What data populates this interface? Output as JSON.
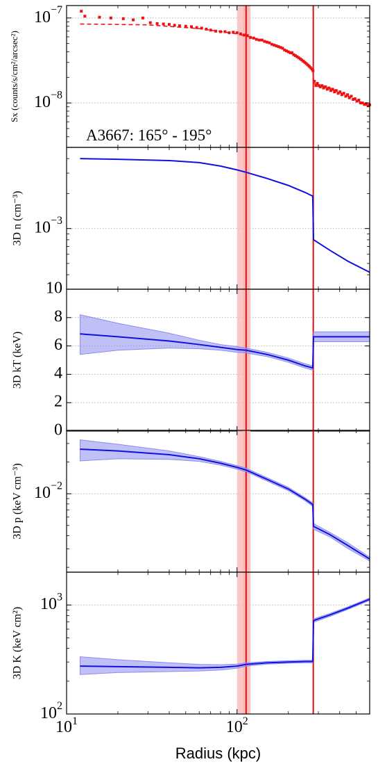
{
  "colors": {
    "profile": "#1010e0",
    "band": "#8c8cf0",
    "data": "#ee1111",
    "shade": "#f7b5b5",
    "line": "#e01010",
    "grid": "#b0b0b0"
  },
  "chart_data": {
    "type": "line",
    "x_scale": "log",
    "xlim": [
      10,
      600
    ],
    "xlabel": "Radius (kpc)",
    "x_ticks": [
      {
        "value": 10,
        "base": "10",
        "exp": "1"
      },
      {
        "value": 100,
        "base": "10",
        "exp": "2"
      }
    ],
    "vertical_lines": [
      113,
      280
    ],
    "shaded_regions": [
      [
        100,
        120
      ],
      [
        108,
        118
      ]
    ],
    "panels": [
      {
        "id": "sx",
        "ylabel": "Sx (counts/s/cm²/arcsec²)",
        "y_scale": "log",
        "ylim": [
          3e-09,
          1.4e-07
        ],
        "y_ticks": [
          {
            "value": 1e-07,
            "base": "10",
            "exp": "−7"
          },
          {
            "value": 1e-08,
            "base": "10",
            "exp": "−8"
          }
        ],
        "annotation": "A3667: 165° - 195°",
        "model": {
          "style": "dashed",
          "points": [
            [
              12,
              8.5e-08
            ],
            [
              30,
              8.3e-08
            ],
            [
              60,
              7.5e-08
            ],
            [
              100,
              6.5e-08
            ],
            [
              140,
              5.5e-08
            ],
            [
              180,
              4.5e-08
            ],
            [
              220,
              3.6e-08
            ],
            [
              260,
              2.9e-08
            ],
            [
              278,
              2.5e-08
            ],
            [
              282,
              1.7e-08
            ],
            [
              350,
              1.5e-08
            ],
            [
              450,
              1.2e-08
            ],
            [
              600,
              9e-09
            ]
          ]
        },
        "data_points": [
          [
            12.2,
            1.2e-07
          ],
          [
            12.8,
            1.05e-07
          ],
          [
            15.6,
            1.02e-07
          ],
          [
            18.2,
            1e-07
          ],
          [
            21.5,
            9.8e-08
          ],
          [
            24.6,
            9.5e-08
          ],
          [
            28,
            1e-07
          ],
          [
            31,
            8.8e-08
          ],
          [
            34,
            8.6e-08
          ],
          [
            37,
            8.5e-08
          ],
          [
            40,
            8.4e-08
          ],
          [
            43,
            8.2e-08
          ],
          [
            46,
            8.1e-08
          ],
          [
            50,
            8e-08
          ],
          [
            54,
            7.9e-08
          ],
          [
            58,
            7.7e-08
          ],
          [
            62,
            7.6e-08
          ],
          [
            66,
            7.4e-08
          ],
          [
            70,
            7.2e-08
          ],
          [
            75,
            7e-08
          ],
          [
            80,
            6.9e-08
          ],
          [
            85,
            6.9e-08
          ],
          [
            90,
            6.7e-08
          ],
          [
            95,
            6.8e-08
          ],
          [
            100,
            6.7e-08
          ],
          [
            105,
            6.5e-08
          ],
          [
            110,
            6.3e-08
          ],
          [
            115,
            6.2e-08
          ],
          [
            120,
            5.9e-08
          ],
          [
            125,
            5.8e-08
          ],
          [
            130,
            5.6e-08
          ],
          [
            135,
            5.5e-08
          ],
          [
            140,
            5.5e-08
          ],
          [
            145,
            5.3e-08
          ],
          [
            150,
            5.2e-08
          ],
          [
            155,
            5.1e-08
          ],
          [
            160,
            4.9e-08
          ],
          [
            165,
            4.8e-08
          ],
          [
            170,
            4.7e-08
          ],
          [
            175,
            4.6e-08
          ],
          [
            180,
            4.5e-08
          ],
          [
            185,
            4.4e-08
          ],
          [
            190,
            4.2e-08
          ],
          [
            195,
            4.1e-08
          ],
          [
            200,
            4e-08
          ],
          [
            205,
            3.9e-08
          ],
          [
            210,
            3.9e-08
          ],
          [
            215,
            3.7e-08
          ],
          [
            220,
            3.6e-08
          ],
          [
            225,
            3.5e-08
          ],
          [
            230,
            3.4e-08
          ],
          [
            235,
            3.3e-08
          ],
          [
            240,
            3.2e-08
          ],
          [
            245,
            3.1e-08
          ],
          [
            250,
            3e-08
          ],
          [
            255,
            2.9e-08
          ],
          [
            260,
            2.8e-08
          ],
          [
            265,
            2.7e-08
          ],
          [
            270,
            2.6e-08
          ],
          [
            275,
            2.5e-08
          ],
          [
            279,
            2.4e-08
          ],
          [
            284,
            1.8e-08
          ],
          [
            290,
            1.6e-08
          ],
          [
            296,
            1.7e-08
          ],
          [
            302,
            1.6e-08
          ],
          [
            308,
            1.55e-08
          ],
          [
            315,
            1.6e-08
          ],
          [
            322,
            1.5e-08
          ],
          [
            330,
            1.55e-08
          ],
          [
            338,
            1.45e-08
          ],
          [
            346,
            1.5e-08
          ],
          [
            355,
            1.4e-08
          ],
          [
            364,
            1.45e-08
          ],
          [
            373,
            1.35e-08
          ],
          [
            382,
            1.4e-08
          ],
          [
            392,
            1.3e-08
          ],
          [
            402,
            1.35e-08
          ],
          [
            412,
            1.25e-08
          ],
          [
            423,
            1.3e-08
          ],
          [
            434,
            1.2e-08
          ],
          [
            445,
            1.25e-08
          ],
          [
            456,
            1.15e-08
          ],
          [
            468,
            1.2e-08
          ],
          [
            480,
            1.1e-08
          ],
          [
            492,
            1.12e-08
          ],
          [
            505,
            1.05e-08
          ],
          [
            518,
            1.08e-08
          ],
          [
            531,
            1e-08
          ],
          [
            545,
            1e-08
          ],
          [
            559,
            9.6e-09
          ],
          [
            573,
            9.8e-09
          ],
          [
            588,
            9.3e-09
          ],
          [
            600,
            9.5e-09
          ]
        ]
      },
      {
        "id": "n",
        "ylabel": "3D n (cm⁻³)",
        "y_scale": "log",
        "ylim": [
          0.0003,
          0.005
        ],
        "y_ticks": [
          {
            "value": 0.001,
            "base": "10",
            "exp": "−3"
          }
        ],
        "model": {
          "style": "solid",
          "points": [
            [
              12,
              0.004
            ],
            [
              20,
              0.00395
            ],
            [
              40,
              0.00385
            ],
            [
              60,
              0.0037
            ],
            [
              80,
              0.00345
            ],
            [
              100,
              0.0032
            ],
            [
              113,
              0.00305
            ],
            [
              150,
              0.0027
            ],
            [
              200,
              0.00235
            ],
            [
              250,
              0.00205
            ],
            [
              278,
              0.0019
            ],
            [
              281,
              0.0008
            ],
            [
              350,
              0.00065
            ],
            [
              450,
              0.00052
            ],
            [
              600,
              0.00042
            ]
          ]
        }
      },
      {
        "id": "kt",
        "ylabel": "3D kT (keV)",
        "y_scale": "linear",
        "ylim": [
          0,
          10
        ],
        "y_ticks": [
          {
            "value": 0,
            "label": "0"
          },
          {
            "value": 2,
            "label": "2"
          },
          {
            "value": 4,
            "label": "4"
          },
          {
            "value": 6,
            "label": "6"
          },
          {
            "value": 8,
            "label": "8"
          },
          {
            "value": 10,
            "label": "10"
          }
        ],
        "model": {
          "style": "solid",
          "points": [
            [
              12,
              6.85
            ],
            [
              20,
              6.65
            ],
            [
              40,
              6.35
            ],
            [
              60,
              6.1
            ],
            [
              80,
              5.9
            ],
            [
              100,
              5.75
            ],
            [
              113,
              5.7
            ],
            [
              150,
              5.4
            ],
            [
              200,
              5.0
            ],
            [
              250,
              4.6
            ],
            [
              278,
              4.45
            ],
            [
              281,
              6.65
            ],
            [
              600,
              6.65
            ]
          ]
        },
        "band": {
          "upper": [
            [
              12,
              8.2
            ],
            [
              20,
              7.6
            ],
            [
              40,
              6.9
            ],
            [
              60,
              6.4
            ],
            [
              80,
              6.1
            ],
            [
              100,
              5.95
            ],
            [
              113,
              5.85
            ],
            [
              150,
              5.55
            ],
            [
              200,
              5.15
            ],
            [
              250,
              4.75
            ],
            [
              278,
              4.6
            ],
            [
              281,
              7.0
            ],
            [
              600,
              7.0
            ]
          ],
          "lower": [
            [
              12,
              5.4
            ],
            [
              20,
              5.7
            ],
            [
              40,
              5.85
            ],
            [
              60,
              5.8
            ],
            [
              80,
              5.7
            ],
            [
              100,
              5.55
            ],
            [
              113,
              5.5
            ],
            [
              150,
              5.25
            ],
            [
              200,
              4.85
            ],
            [
              250,
              4.45
            ],
            [
              278,
              4.3
            ],
            [
              281,
              6.3
            ],
            [
              600,
              6.3
            ]
          ]
        }
      },
      {
        "id": "p",
        "ylabel": "3D p (keV cm⁻³)",
        "y_scale": "log",
        "ylim": [
          0.0018,
          0.04
        ],
        "y_ticks": [
          {
            "value": 0.01,
            "base": "10",
            "exp": "−2"
          }
        ],
        "model": {
          "style": "solid",
          "points": [
            [
              12,
              0.0265
            ],
            [
              20,
              0.0255
            ],
            [
              40,
              0.0235
            ],
            [
              60,
              0.0215
            ],
            [
              80,
              0.0195
            ],
            [
              100,
              0.0178
            ],
            [
              113,
              0.0168
            ],
            [
              150,
              0.0137
            ],
            [
              200,
              0.0111
            ],
            [
              250,
              0.0089
            ],
            [
              278,
              0.0079
            ],
            [
              281,
              0.0049
            ],
            [
              350,
              0.0041
            ],
            [
              450,
              0.0032
            ],
            [
              600,
              0.0024
            ]
          ]
        },
        "band": {
          "upper": [
            [
              12,
              0.0325
            ],
            [
              20,
              0.0295
            ],
            [
              40,
              0.0255
            ],
            [
              60,
              0.0225
            ],
            [
              80,
              0.0203
            ],
            [
              100,
              0.0185
            ],
            [
              113,
              0.0175
            ],
            [
              150,
              0.0142
            ],
            [
              200,
              0.0115
            ],
            [
              250,
              0.0092
            ],
            [
              278,
              0.0082
            ],
            [
              281,
              0.0052
            ],
            [
              350,
              0.0043
            ],
            [
              450,
              0.0034
            ],
            [
              600,
              0.0025
            ]
          ],
          "lower": [
            [
              12,
              0.0205
            ],
            [
              20,
              0.0215
            ],
            [
              40,
              0.0212
            ],
            [
              60,
              0.0203
            ],
            [
              80,
              0.0187
            ],
            [
              100,
              0.0171
            ],
            [
              113,
              0.0162
            ],
            [
              150,
              0.0132
            ],
            [
              200,
              0.0107
            ],
            [
              250,
              0.0086
            ],
            [
              278,
              0.0076
            ],
            [
              281,
              0.0046
            ],
            [
              350,
              0.0039
            ],
            [
              450,
              0.003
            ],
            [
              600,
              0.0023
            ]
          ]
        }
      },
      {
        "id": "k",
        "ylabel": "3D K (keV cm²)",
        "y_scale": "log",
        "ylim": [
          100,
          2000
        ],
        "y_ticks": [
          {
            "value": 100,
            "base": "10",
            "exp": "2"
          },
          {
            "value": 1000,
            "base": "10",
            "exp": "3"
          }
        ],
        "model": {
          "style": "solid",
          "points": [
            [
              12,
              275
            ],
            [
              20,
              272
            ],
            [
              40,
              268
            ],
            [
              60,
              265
            ],
            [
              80,
              268
            ],
            [
              100,
              275
            ],
            [
              113,
              285
            ],
            [
              150,
              295
            ],
            [
              200,
              300
            ],
            [
              250,
              303
            ],
            [
              278,
              303
            ],
            [
              281,
              720
            ],
            [
              350,
              810
            ],
            [
              450,
              940
            ],
            [
              600,
              1130
            ]
          ]
        },
        "band": {
          "upper": [
            [
              12,
              335
            ],
            [
              20,
              315
            ],
            [
              40,
              295
            ],
            [
              60,
              285
            ],
            [
              80,
              283
            ],
            [
              100,
              287
            ],
            [
              113,
              295
            ],
            [
              150,
              303
            ],
            [
              200,
              308
            ],
            [
              250,
              311
            ],
            [
              278,
              311
            ],
            [
              281,
              745
            ],
            [
              350,
              835
            ],
            [
              450,
              965
            ],
            [
              600,
              1160
            ]
          ],
          "lower": [
            [
              12,
              230
            ],
            [
              20,
              240
            ],
            [
              40,
              245
            ],
            [
              60,
              248
            ],
            [
              80,
              253
            ],
            [
              100,
              263
            ],
            [
              113,
              275
            ],
            [
              150,
              287
            ],
            [
              200,
              292
            ],
            [
              250,
              295
            ],
            [
              278,
              295
            ],
            [
              281,
              695
            ],
            [
              350,
              785
            ],
            [
              450,
              915
            ],
            [
              600,
              1100
            ]
          ]
        }
      }
    ]
  }
}
